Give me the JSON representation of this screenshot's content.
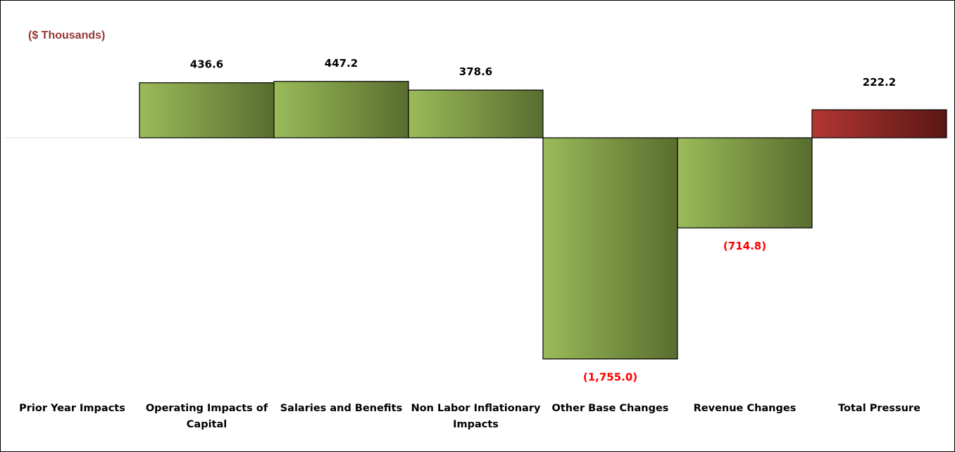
{
  "unit_label": "($ Thousands)",
  "chart_data": {
    "type": "bar",
    "variant": "waterfall",
    "categories": [
      [
        "Prior Year Impacts"
      ],
      [
        "Operating Impacts of",
        "Capital"
      ],
      [
        "Salaries and Benefits"
      ],
      [
        "Non Labor Inflationary",
        "Impacts"
      ],
      [
        "Other Base Changes"
      ],
      [
        "Revenue Changes"
      ],
      [
        "Total Pressure"
      ]
    ],
    "values": [
      0,
      436.6,
      447.2,
      378.6,
      -1755.0,
      -714.8,
      222.2
    ],
    "value_labels": [
      "",
      "436.6",
      "447.2",
      "378.6",
      "(1,755.0)",
      "(714.8)",
      "222.2"
    ],
    "bar_colors": [
      "green",
      "green",
      "green",
      "green",
      "green",
      "green",
      "red"
    ],
    "positive_label_color": "#000000",
    "negative_label_color": "#ff0000",
    "ylim": [
      -1900,
      500
    ],
    "grid": false,
    "legend": "none"
  }
}
